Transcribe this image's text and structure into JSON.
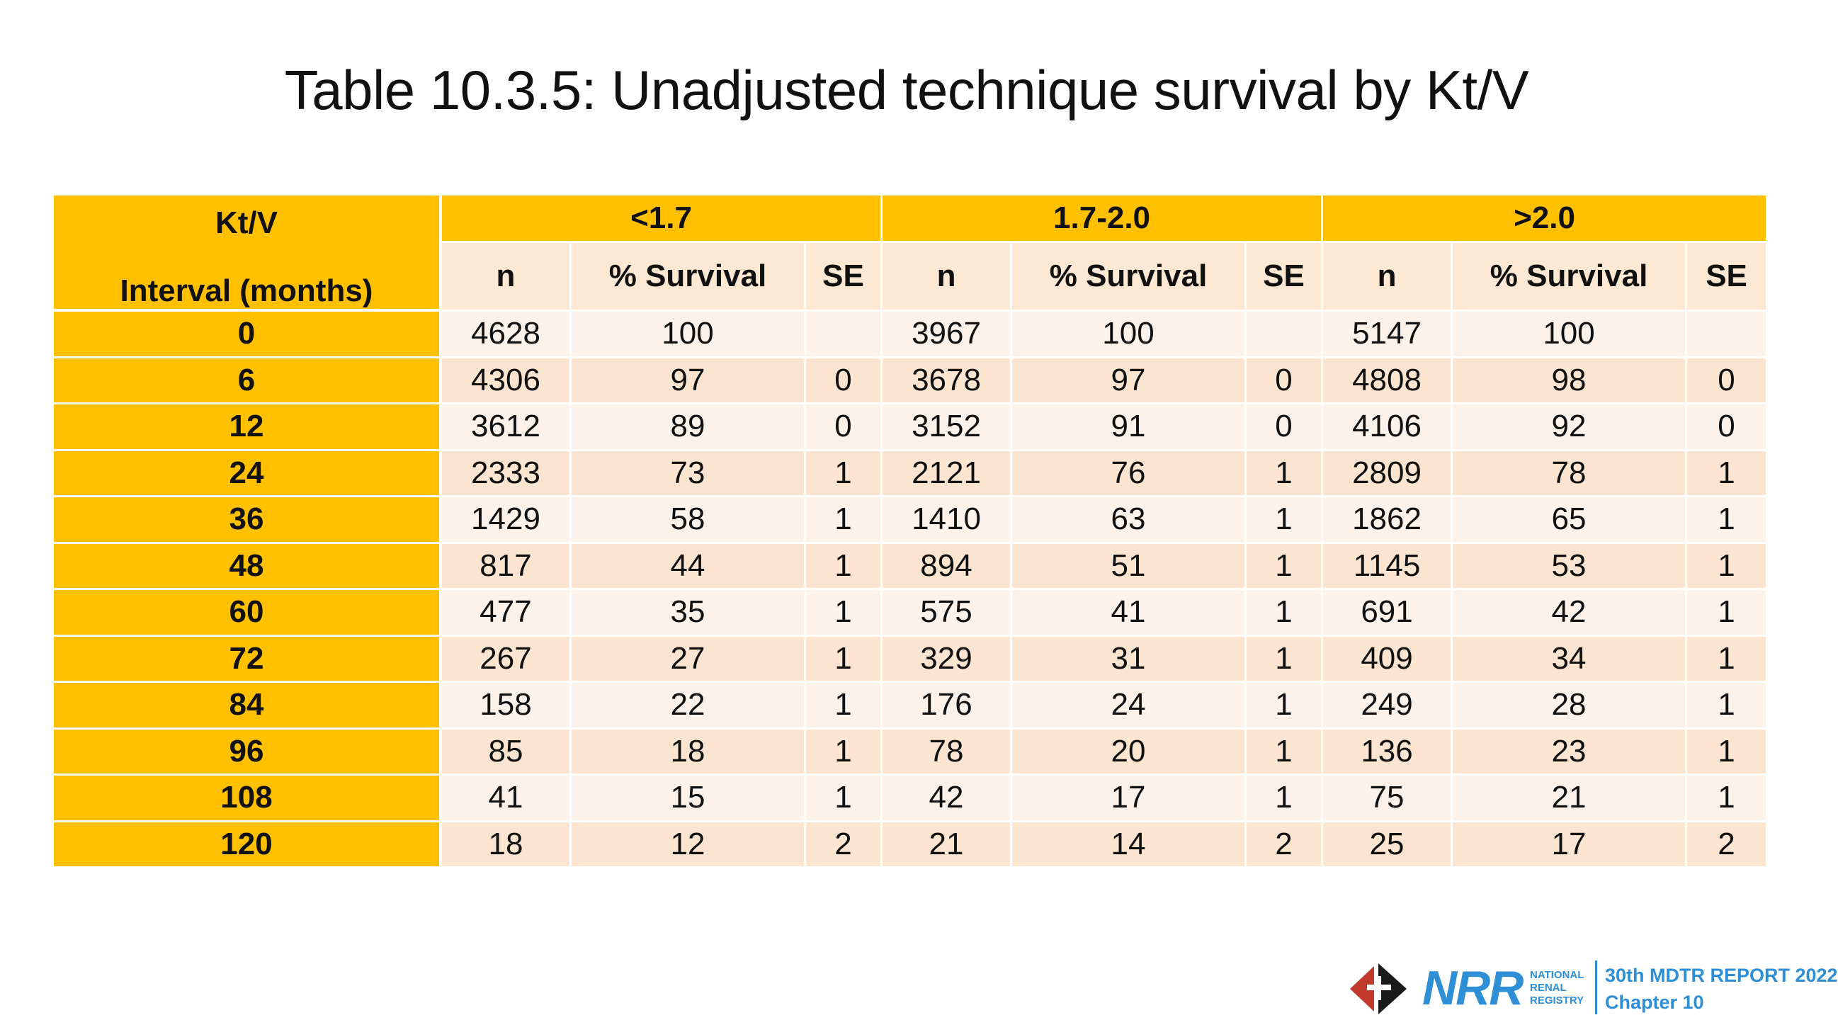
{
  "title": "Table 10.3.5: Unadjusted technique survival by Kt/V",
  "table": {
    "corner_line1": "Kt/V",
    "corner_line2": "Interval (months)",
    "groups": [
      "<1.7",
      "1.7-2.0",
      ">2.0"
    ],
    "subheaders": [
      "n",
      "% Survival",
      "SE",
      "n",
      "% Survival",
      "SE",
      "n",
      "% Survival",
      "SE"
    ],
    "rows": [
      {
        "interval": "0",
        "cells": [
          "4628",
          "100",
          "",
          "3967",
          "100",
          "",
          "5147",
          "100",
          ""
        ]
      },
      {
        "interval": "6",
        "cells": [
          "4306",
          "97",
          "0",
          "3678",
          "97",
          "0",
          "4808",
          "98",
          "0"
        ]
      },
      {
        "interval": "12",
        "cells": [
          "3612",
          "89",
          "0",
          "3152",
          "91",
          "0",
          "4106",
          "92",
          "0"
        ]
      },
      {
        "interval": "24",
        "cells": [
          "2333",
          "73",
          "1",
          "2121",
          "76",
          "1",
          "2809",
          "78",
          "1"
        ]
      },
      {
        "interval": "36",
        "cells": [
          "1429",
          "58",
          "1",
          "1410",
          "63",
          "1",
          "1862",
          "65",
          "1"
        ]
      },
      {
        "interval": "48",
        "cells": [
          "817",
          "44",
          "1",
          "894",
          "51",
          "1",
          "1145",
          "53",
          "1"
        ]
      },
      {
        "interval": "60",
        "cells": [
          "477",
          "35",
          "1",
          "575",
          "41",
          "1",
          "691",
          "42",
          "1"
        ]
      },
      {
        "interval": "72",
        "cells": [
          "267",
          "27",
          "1",
          "329",
          "31",
          "1",
          "409",
          "34",
          "1"
        ]
      },
      {
        "interval": "84",
        "cells": [
          "158",
          "22",
          "1",
          "176",
          "24",
          "1",
          "249",
          "28",
          "1"
        ]
      },
      {
        "interval": "96",
        "cells": [
          "85",
          "18",
          "1",
          "78",
          "20",
          "1",
          "136",
          "23",
          "1"
        ]
      },
      {
        "interval": "108",
        "cells": [
          "41",
          "15",
          "1",
          "42",
          "17",
          "1",
          "75",
          "21",
          "1"
        ]
      },
      {
        "interval": "120",
        "cells": [
          "18",
          "12",
          "2",
          "21",
          "14",
          "2",
          "25",
          "17",
          "2"
        ]
      }
    ]
  },
  "footer": {
    "logo_text": "NRR",
    "logo_sub": [
      "NATIONAL",
      "RENAL",
      "REGISTRY"
    ],
    "report": "30th MDTR REPORT 2022",
    "chapter": "Chapter 10"
  },
  "colors": {
    "header_accent": "#FFC000",
    "row_light": "#FDF2E9",
    "row_dark": "#FBE4D0",
    "brand_blue": "#2E8FD6"
  }
}
